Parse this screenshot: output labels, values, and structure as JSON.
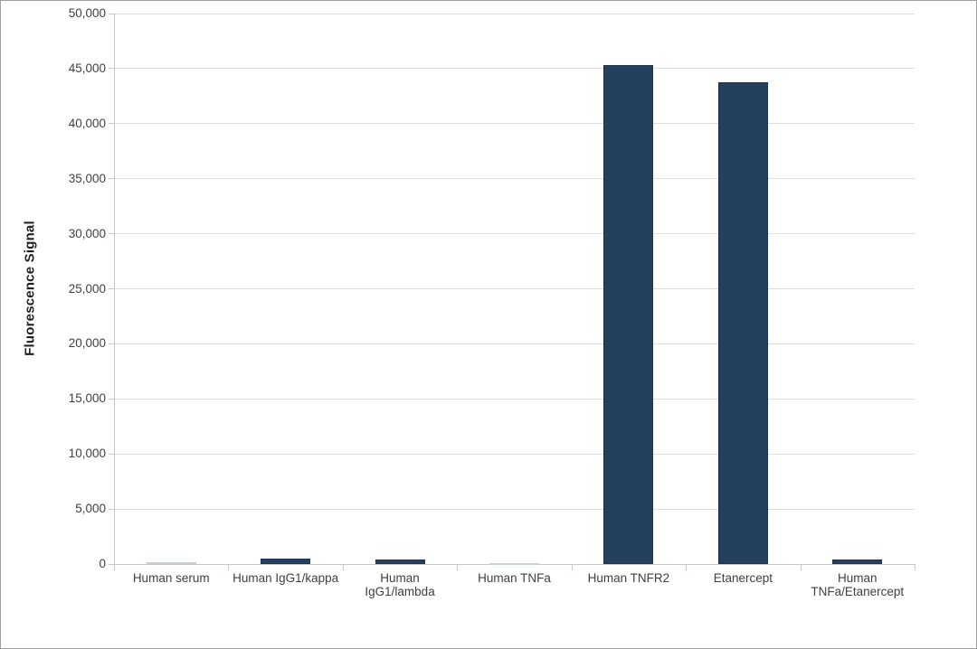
{
  "chart_data": {
    "type": "bar",
    "title": "",
    "xlabel": "",
    "ylabel": "Fluorescence Signal",
    "ylim": [
      0,
      50000
    ],
    "ytick_step": 5000,
    "ytick_labels": [
      "0",
      "5,000",
      "10,000",
      "15,000",
      "20,000",
      "25,000",
      "30,000",
      "35,000",
      "40,000",
      "45,000",
      "50,000"
    ],
    "grid": true,
    "legend": false,
    "categories": [
      {
        "label": "Human serum",
        "lines": [
          "Human serum"
        ],
        "value": 150,
        "fill": "#c9ced4",
        "border": "#c9ced4"
      },
      {
        "label": "Human IgG1/kappa",
        "lines": [
          "Human IgG1/kappa"
        ],
        "value": 500,
        "fill": "#24405e",
        "border": "#1b3350"
      },
      {
        "label": "Human IgG1/lambda",
        "lines": [
          "Human",
          "IgG1/lambda"
        ],
        "value": 400,
        "fill": "#24405e",
        "border": "#1b3350"
      },
      {
        "label": "Human TNFa",
        "lines": [
          "Human TNFa"
        ],
        "value": 100,
        "fill": "#cdd2d7",
        "border": "#cdd2d7"
      },
      {
        "label": "Human TNFR2",
        "lines": [
          "Human TNFR2"
        ],
        "value": 45300,
        "fill": "#24405e",
        "border": "#1b3350"
      },
      {
        "label": "Etanercept",
        "lines": [
          "Etanercept"
        ],
        "value": 43800,
        "fill": "#24405e",
        "border": "#1b3350"
      },
      {
        "label": "Human TNFa/Etanercept",
        "lines": [
          "Human",
          "TNFa/Etanercept"
        ],
        "value": 450,
        "fill": "#24405e",
        "border": "#1b3350"
      }
    ],
    "colors": {
      "bar_fill": "#24405e",
      "bar_border": "#1b3350",
      "gridline": "#dcdfe2",
      "axis": "#c3c7cb",
      "tick_text": "#3f3f3f",
      "background": "#ffffff",
      "figure_border": "#9e9e9e"
    }
  }
}
